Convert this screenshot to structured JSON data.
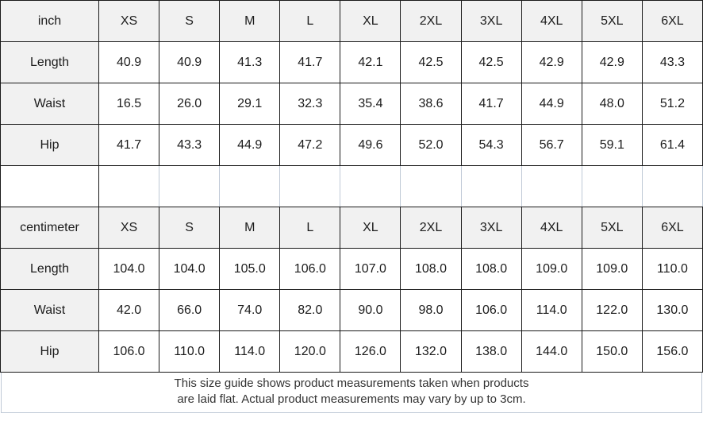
{
  "colors": {
    "header_bg": "#f1f1f1",
    "grid_dark": "#1a1a1a",
    "grid_light": "#bfc9d6",
    "text": "#1c1c1c",
    "footer_text": "#333333"
  },
  "chart_data": [
    {
      "type": "table",
      "unit": "inch",
      "columns": [
        "inch",
        "XS",
        "S",
        "M",
        "L",
        "XL",
        "2XL",
        "3XL",
        "4XL",
        "5XL",
        "6XL"
      ],
      "rows": [
        [
          "Length",
          "40.9",
          "40.9",
          "41.3",
          "41.7",
          "42.1",
          "42.5",
          "42.5",
          "42.9",
          "42.9",
          "43.3"
        ],
        [
          "Waist",
          "16.5",
          "26.0",
          "29.1",
          "32.3",
          "35.4",
          "38.6",
          "41.7",
          "44.9",
          "48.0",
          "51.2"
        ],
        [
          "Hip",
          "41.7",
          "43.3",
          "44.9",
          "47.2",
          "49.6",
          "52.0",
          "54.3",
          "56.7",
          "59.1",
          "61.4"
        ]
      ]
    },
    {
      "type": "table",
      "unit": "centimeter",
      "columns": [
        "centimeter",
        "XS",
        "S",
        "M",
        "L",
        "XL",
        "2XL",
        "3XL",
        "4XL",
        "5XL",
        "6XL"
      ],
      "rows": [
        [
          "Length",
          "104.0",
          "104.0",
          "105.0",
          "106.0",
          "107.0",
          "108.0",
          "108.0",
          "109.0",
          "109.0",
          "110.0"
        ],
        [
          "Waist",
          "42.0",
          "66.0",
          "74.0",
          "82.0",
          "90.0",
          "98.0",
          "106.0",
          "114.0",
          "122.0",
          "130.0"
        ],
        [
          "Hip",
          "106.0",
          "110.0",
          "114.0",
          "120.0",
          "126.0",
          "132.0",
          "138.0",
          "144.0",
          "150.0",
          "156.0"
        ]
      ]
    }
  ],
  "footer": {
    "lines": [
      "This size guide shows product measurements taken when products",
      "are laid flat. Actual product measurements may vary by up to 3cm."
    ]
  }
}
